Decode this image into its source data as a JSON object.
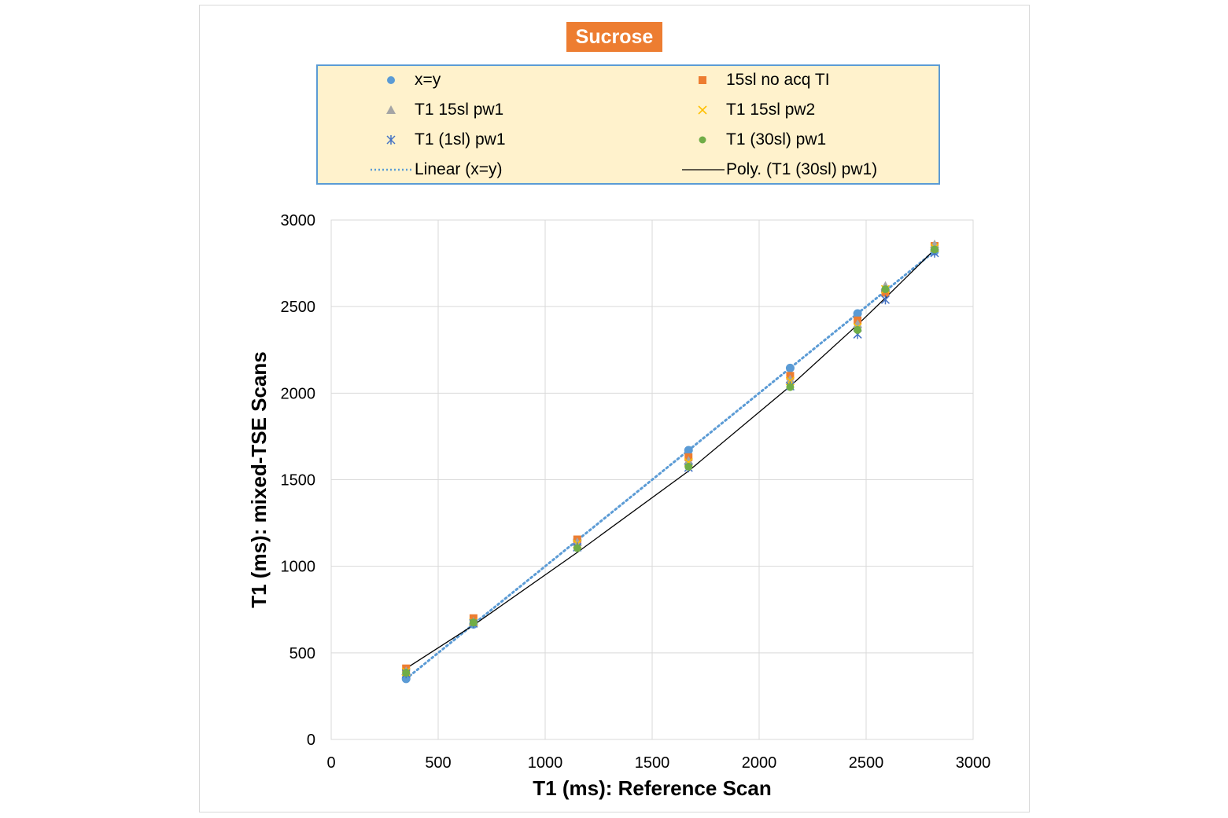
{
  "chart_data": {
    "type": "scatter",
    "title": "Sucrose",
    "xlabel": "T1 (ms): Reference Scan",
    "ylabel": "T1 (ms): mixed-TSE Scans",
    "xlim": [
      0,
      3000
    ],
    "ylim": [
      0,
      3000
    ],
    "x_ticks": [
      "0",
      "500",
      "1000",
      "1500",
      "2000",
      "2500",
      "3000"
    ],
    "y_ticks": [
      "0",
      "500",
      "1000",
      "1500",
      "2000",
      "2500",
      "3000"
    ],
    "grid": true,
    "legend_position": "top",
    "series": [
      {
        "name": "x=y",
        "marker": "circle",
        "color": "#5b9bd5",
        "x": [
          350,
          665,
          1150,
          1670,
          2145,
          2460,
          2590,
          2820
        ],
        "y": [
          350,
          665,
          1150,
          1670,
          2145,
          2460,
          2590,
          2820
        ]
      },
      {
        "name": "15sl no acq TI",
        "marker": "square",
        "color": "#ed7d31",
        "x": [
          350,
          665,
          1150,
          1670,
          2145,
          2460,
          2590,
          2820
        ],
        "y": [
          410,
          700,
          1155,
          1630,
          2100,
          2420,
          2580,
          2850
        ]
      },
      {
        "name": "T1 15sl pw1",
        "marker": "triangle",
        "color": "#a5a5a5",
        "x": [
          350,
          665,
          1150,
          1670,
          2145,
          2460,
          2590,
          2820
        ],
        "y": [
          395,
          680,
          1140,
          1610,
          2080,
          2400,
          2620,
          2860
        ]
      },
      {
        "name": "T1 15sl pw2",
        "marker": "x",
        "color": "#ffc000",
        "x": [
          350,
          665,
          1150,
          1670,
          2145,
          2460,
          2590,
          2820
        ],
        "y": [
          390,
          675,
          1130,
          1600,
          2070,
          2380,
          2600,
          2840
        ]
      },
      {
        "name": "T1 (1sl) pw1",
        "marker": "asterisk",
        "color": "#4472c4",
        "x": [
          350,
          665,
          1150,
          1670,
          2145,
          2460,
          2590,
          2820
        ],
        "y": [
          380,
          670,
          1110,
          1570,
          2040,
          2340,
          2540,
          2810
        ]
      },
      {
        "name": "T1 (30sl) pw1",
        "marker": "dot",
        "color": "#70ad47",
        "x": [
          350,
          665,
          1150,
          1670,
          2145,
          2460,
          2590,
          2820
        ],
        "y": [
          385,
          675,
          1105,
          1575,
          2035,
          2365,
          2600,
          2830
        ]
      }
    ],
    "trendlines": [
      {
        "name": "Linear (x=y)",
        "style": "dotted",
        "color": "#5b9bd5",
        "x": [
          350,
          2820
        ],
        "y": [
          350,
          2820
        ]
      },
      {
        "name": "Poly. (T1 (30sl) pw1)",
        "style": "solid",
        "color": "#000000",
        "x": [
          350,
          665,
          1150,
          1670,
          2145,
          2460,
          2590,
          2820
        ],
        "y": [
          410,
          660,
          1080,
          1550,
          2040,
          2395,
          2550,
          2830
        ]
      }
    ]
  }
}
